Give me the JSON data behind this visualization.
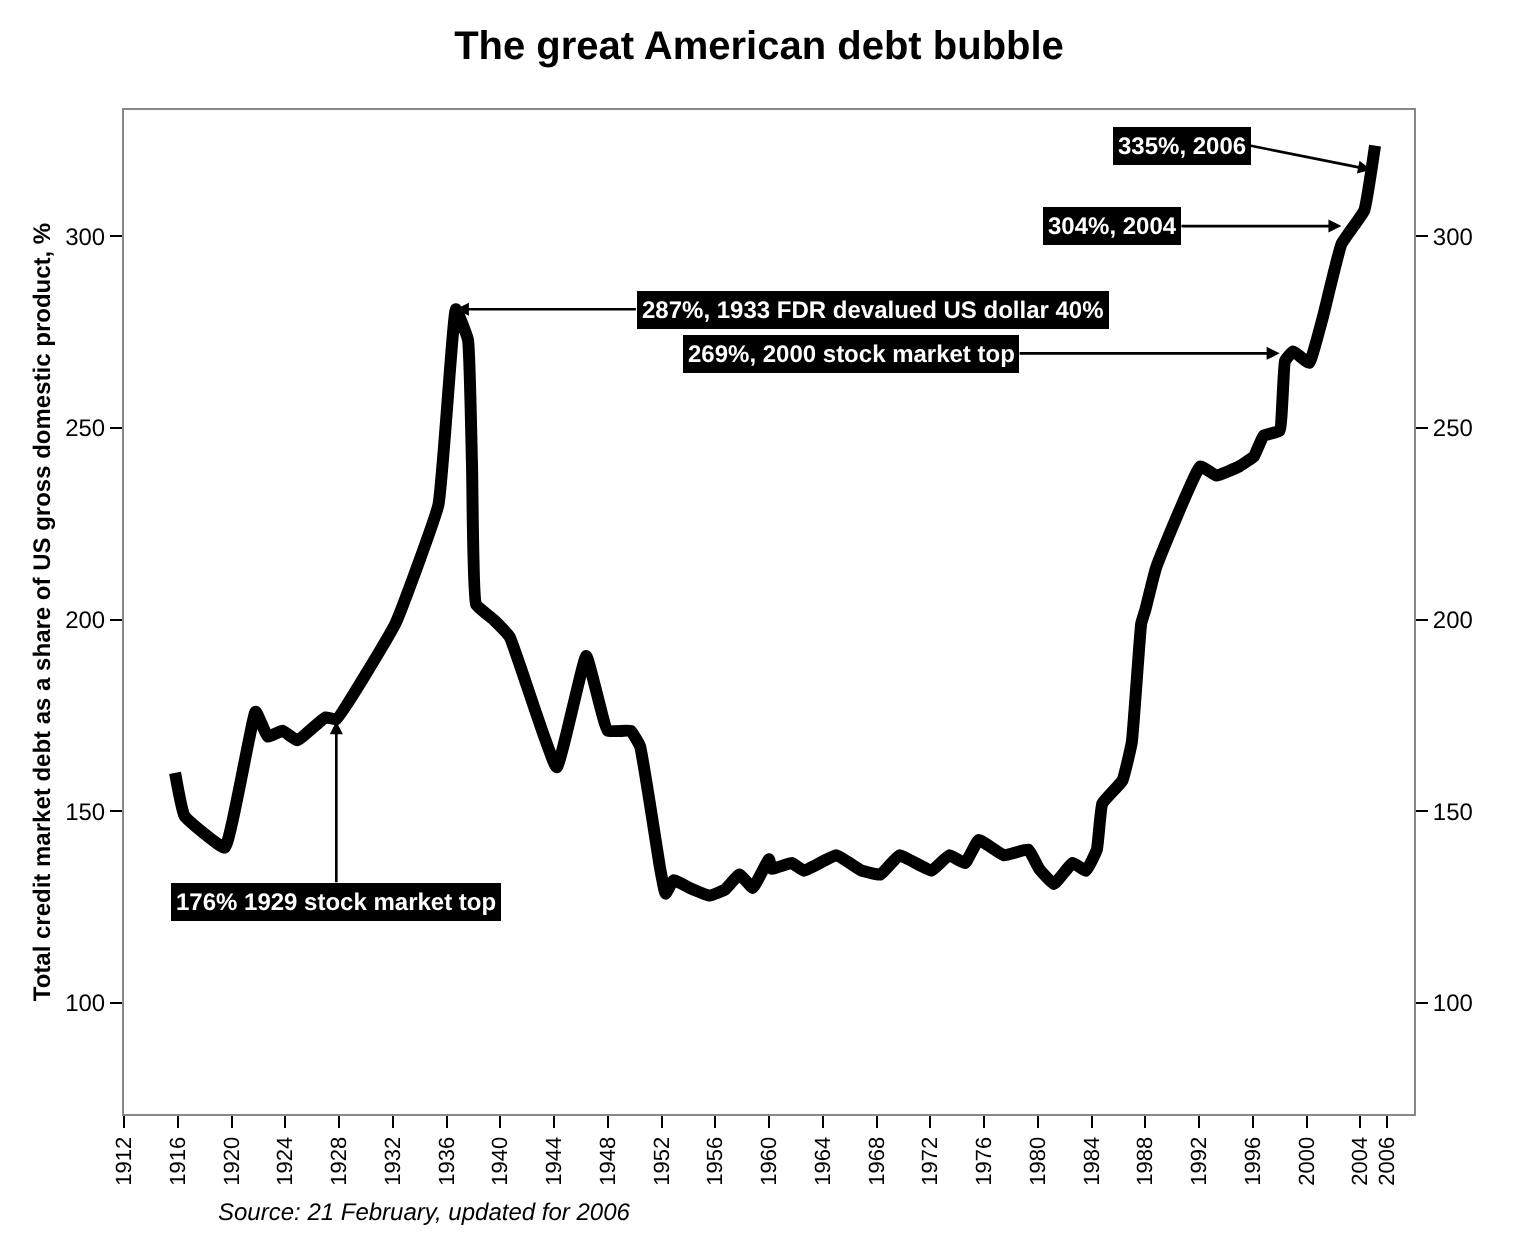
{
  "chart_data": {
    "type": "line",
    "title": "The great American debt bubble",
    "ylabel": "Total credit market debt as a share of US gross domestic product, %",
    "x": [
      1915.8,
      1916.5,
      1919.5,
      1921.8,
      1922.7,
      1923.8,
      1924.9,
      1927,
      1927.8,
      1932.2,
      1935.4,
      1936.7,
      1937.6,
      1937.9,
      1938.2,
      1939.5,
      1940.7,
      1944.2,
      1946.4,
      1948,
      1949.7,
      1950.4,
      1951.9,
      1952.3,
      1952.9,
      1954.1,
      1955.6,
      1956.7,
      1957.8,
      1958.8,
      1960,
      1960.2,
      1961.7,
      1962.6,
      1965,
      1966.9,
      1968.3,
      1969.7,
      1972.1,
      1973.4,
      1974.6,
      1975.6,
      1977.5,
      1979.3,
      1980.1,
      1981.2,
      1982.6,
      1983.6,
      1984.4,
      1984.8,
      1986.3,
      1987,
      1987.7,
      1988,
      1988.8,
      1992.1,
      1993.3,
      1995,
      1996.1,
      1996.8,
      1998,
      1998.4,
      1999,
      2000.2,
      2001.2,
      2002.6,
      2004.3,
      2005.1
    ],
    "series": [
      {
        "color": "#000000",
        "values": [
          160,
          148.8,
          140.5,
          176,
          169.5,
          171,
          168.5,
          174.5,
          174,
          199,
          230,
          281,
          273,
          240,
          204,
          200,
          195.5,
          161.5,
          190.5,
          171,
          171,
          167,
          135,
          128.5,
          132,
          130,
          128,
          129.5,
          133.5,
          130,
          137.5,
          135,
          136.5,
          134.5,
          138.5,
          134.5,
          133.5,
          138.5,
          134.5,
          138.5,
          136.5,
          142.5,
          138.5,
          140,
          135,
          131,
          136.5,
          134.5,
          140,
          152,
          158,
          168,
          199,
          202.5,
          213.5,
          240,
          237.6,
          240,
          242.7,
          248,
          249.3,
          267.5,
          270,
          267,
          278.7,
          298,
          306.8,
          323.7
        ]
      }
    ],
    "xlim": [
      1912,
      2008
    ],
    "xticks": [
      1912,
      1916,
      1920,
      1924,
      1928,
      1932,
      1936,
      1940,
      1944,
      1948,
      1952,
      1956,
      1960,
      1964,
      1968,
      1972,
      1976,
      1980,
      1984,
      1988,
      1992,
      1996,
      2000,
      2004,
      2006
    ],
    "ylim": [
      71,
      333
    ],
    "yticks": [
      100,
      150,
      200,
      250,
      300
    ],
    "y2lim": [
      71,
      333
    ],
    "y2ticks": [
      100,
      150,
      200,
      250,
      300
    ],
    "legend": false,
    "marker": "none",
    "line_style": "solid",
    "annotations": [
      {
        "text": "176% 1929 stock market top",
        "x": 1927.8,
        "y": 173.5
      },
      {
        "text": "287%, 1933 FDR devalued US dollar 40%",
        "x": 1936.7,
        "y": 281
      },
      {
        "text": "269%, 2000 stock market top",
        "x": 1998,
        "y": 269.5
      },
      {
        "text": "304%, 2004",
        "x": 2002.6,
        "y": 302.7
      },
      {
        "text": "335%, 2006",
        "x": 2004.8,
        "y": 317.4
      },
      "Source: 21 February, updated for 2006"
    ]
  }
}
